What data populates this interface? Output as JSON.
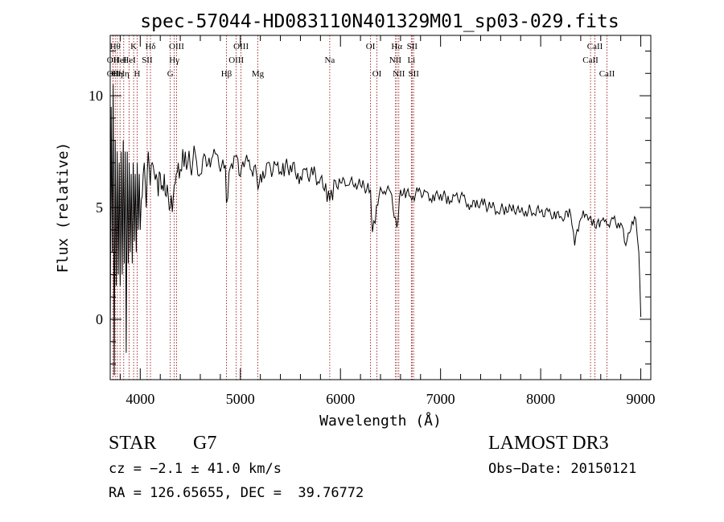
{
  "chart_data": {
    "type": "line",
    "title": "spec-57044-HD083110N401329M01_sp03-029.fits",
    "xlabel": "Wavelength (Å)",
    "ylabel": "Flux (relative)",
    "xlim": [
      3700,
      9100
    ],
    "ylim": [
      -2.7,
      12.7
    ],
    "xticks": [
      4000,
      5000,
      6000,
      7000,
      8000,
      9000
    ],
    "yticks": [
      0,
      5,
      10
    ],
    "x_minor_step": 200,
    "y_minor_step": 1,
    "series": [
      {
        "name": "Flux",
        "x": [
          3700,
          3710,
          3720,
          3730,
          3740,
          3750,
          3760,
          3770,
          3780,
          3790,
          3800,
          3810,
          3820,
          3830,
          3840,
          3850,
          3860,
          3870,
          3880,
          3890,
          3900,
          3910,
          3920,
          3930,
          3940,
          3950,
          3960,
          3970,
          3980,
          3990,
          4000,
          4020,
          4040,
          4060,
          4080,
          4100,
          4120,
          4140,
          4160,
          4180,
          4200,
          4220,
          4240,
          4260,
          4280,
          4300,
          4320,
          4340,
          4360,
          4380,
          4400,
          4450,
          4500,
          4550,
          4600,
          4650,
          4700,
          4750,
          4800,
          4850,
          4861,
          4900,
          4950,
          5000,
          5050,
          5100,
          5150,
          5175,
          5200,
          5300,
          5400,
          5500,
          5600,
          5700,
          5800,
          5893,
          5950,
          6000,
          6100,
          6200,
          6300,
          6320,
          6400,
          6500,
          6563,
          6600,
          6700,
          6800,
          6900,
          7000,
          7100,
          7200,
          7300,
          7400,
          7500,
          7600,
          7700,
          7800,
          7900,
          8000,
          8100,
          8200,
          8300,
          8340,
          8400,
          8450,
          8500,
          8542,
          8600,
          8662,
          8700,
          8800,
          8850,
          8900,
          8950,
          8980,
          9000
        ],
        "y": [
          -1.0,
          9.5,
          3.0,
          10.5,
          -2.5,
          8.0,
          1.5,
          7.5,
          2.0,
          7.0,
          1.5,
          7.5,
          2.0,
          8.0,
          2.5,
          7.5,
          -1.5,
          7.5,
          2.5,
          7.0,
          3.0,
          6.5,
          2.5,
          7.0,
          3.5,
          6.5,
          3.0,
          7.0,
          4.0,
          6.5,
          4.0,
          5.5,
          7.0,
          5.0,
          7.5,
          6.0,
          7.0,
          6.5,
          6.5,
          5.5,
          6.5,
          6.0,
          6.5,
          5.5,
          5.5,
          5.0,
          4.8,
          6.0,
          6.5,
          7.0,
          6.7,
          7.5,
          6.8,
          7.4,
          6.5,
          7.3,
          6.8,
          7.4,
          6.6,
          6.9,
          5.2,
          6.8,
          7.3,
          6.4,
          7.1,
          6.7,
          6.9,
          5.8,
          6.5,
          6.8,
          6.6,
          6.9,
          6.4,
          6.5,
          6.3,
          5.3,
          6.2,
          6.1,
          6.2,
          6.0,
          5.8,
          3.9,
          5.9,
          5.7,
          4.1,
          5.8,
          5.5,
          5.7,
          5.4,
          5.6,
          5.3,
          5.5,
          5.1,
          5.2,
          5.0,
          4.9,
          5.0,
          4.8,
          4.9,
          4.8,
          4.7,
          4.6,
          4.7,
          3.3,
          4.5,
          4.7,
          4.6,
          4.1,
          4.4,
          4.2,
          4.4,
          4.3,
          3.3,
          4.0,
          4.5,
          3.0,
          0.1
        ]
      }
    ],
    "line_color": "#000000",
    "marker_color": "#8b0000",
    "line_markers": [
      {
        "x": 3727,
        "label": "OII",
        "row": 2
      },
      {
        "x": 3727,
        "label": "OII",
        "row": 3
      },
      {
        "x": 3750,
        "label": "Hθ",
        "row": 1
      },
      {
        "x": 3771,
        "label": "Hη",
        "row": 3
      },
      {
        "x": 3798,
        "label": "HeI",
        "row": 2
      },
      {
        "x": 3835,
        "label": "Hη",
        "row": 3
      },
      {
        "x": 3889,
        "label": "HeI",
        "row": 2
      },
      {
        "x": 3934,
        "label": "K",
        "row": 1
      },
      {
        "x": 3969,
        "label": "H",
        "row": 3
      },
      {
        "x": 4069,
        "label": "SII",
        "row": 2
      },
      {
        "x": 4102,
        "label": "Hδ",
        "row": 1
      },
      {
        "x": 4300,
        "label": "G",
        "row": 3
      },
      {
        "x": 4340,
        "label": "Hγ",
        "row": 2
      },
      {
        "x": 4363,
        "label": "OIII",
        "row": 1
      },
      {
        "x": 4861,
        "label": "Hβ",
        "row": 3
      },
      {
        "x": 4959,
        "label": "OIII",
        "row": 2
      },
      {
        "x": 5007,
        "label": "OIII",
        "row": 1
      },
      {
        "x": 5175,
        "label": "Mg",
        "row": 3
      },
      {
        "x": 5893,
        "label": "Na",
        "row": 2
      },
      {
        "x": 6300,
        "label": "OI",
        "row": 1
      },
      {
        "x": 6364,
        "label": "OI",
        "row": 3
      },
      {
        "x": 6548,
        "label": "NII",
        "row": 2
      },
      {
        "x": 6563,
        "label": "Hα",
        "row": 1
      },
      {
        "x": 6583,
        "label": "NII",
        "row": 3
      },
      {
        "x": 6708,
        "label": "Li",
        "row": 2
      },
      {
        "x": 6716,
        "label": "SII",
        "row": 1
      },
      {
        "x": 6731,
        "label": "SII",
        "row": 3
      },
      {
        "x": 8498,
        "label": "CaII",
        "row": 2
      },
      {
        "x": 8542,
        "label": "CaII",
        "row": 1
      },
      {
        "x": 8662,
        "label": "CaII",
        "row": 3
      }
    ]
  },
  "footer": {
    "object_class": "STAR",
    "subclass": "G7",
    "survey": "LAMOST DR3",
    "redshift_line": "cz = −2.1 ± 41.0 km/s",
    "obs_date": "Obs−Date: 20150121",
    "coords_line": "RA = 126.65655, DEC =  39.76772"
  }
}
